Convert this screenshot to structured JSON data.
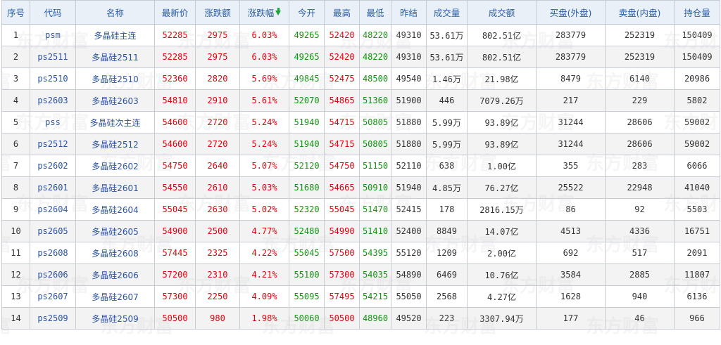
{
  "headers": [
    "序号",
    "代码",
    "名称",
    "最新价",
    "涨跌额",
    "涨跌幅",
    "今开",
    "最高",
    "最低",
    "昨结",
    "成交量",
    "成交额",
    "买盘(外盘)",
    "卖盘(内盘)",
    "持仓量"
  ],
  "sort_indicator": "down-arrow-icon",
  "watermark_text": "东方财富",
  "colors": {
    "up": "#e4000c",
    "down": "#119311",
    "link": "#2a52a0",
    "header_text": "#2c5fa8"
  },
  "rows": [
    [
      "1",
      "psm",
      "多晶硅主连",
      "52285",
      "2975",
      "6.03%",
      "49265",
      "52420",
      "48220",
      "49310",
      "53.61万",
      "802.51亿",
      "283779",
      "252319",
      "150409"
    ],
    [
      "2",
      "ps2511",
      "多晶硅2511",
      "52285",
      "2975",
      "6.03%",
      "49265",
      "52420",
      "48220",
      "49310",
      "53.61万",
      "802.51亿",
      "283779",
      "252319",
      "150409"
    ],
    [
      "3",
      "ps2510",
      "多晶硅2510",
      "52360",
      "2820",
      "5.69%",
      "49845",
      "52475",
      "48500",
      "49540",
      "1.46万",
      "21.98亿",
      "8479",
      "6140",
      "20986"
    ],
    [
      "4",
      "ps2603",
      "多晶硅2603",
      "54810",
      "2910",
      "5.61%",
      "52070",
      "54865",
      "51360",
      "51900",
      "446",
      "7079.26万",
      "217",
      "229",
      "5802"
    ],
    [
      "5",
      "pss",
      "多晶硅次主连",
      "54600",
      "2720",
      "5.24%",
      "51940",
      "54715",
      "50805",
      "51880",
      "5.99万",
      "93.89亿",
      "31244",
      "28606",
      "59002"
    ],
    [
      "6",
      "ps2512",
      "多晶硅2512",
      "54600",
      "2720",
      "5.24%",
      "51940",
      "54715",
      "50805",
      "51880",
      "5.99万",
      "93.89亿",
      "31244",
      "28606",
      "59002"
    ],
    [
      "7",
      "ps2602",
      "多晶硅2602",
      "54750",
      "2640",
      "5.07%",
      "52120",
      "54750",
      "51150",
      "52110",
      "638",
      "1.00亿",
      "355",
      "283",
      "6066"
    ],
    [
      "8",
      "ps2601",
      "多晶硅2601",
      "54550",
      "2610",
      "5.03%",
      "51680",
      "54665",
      "50910",
      "51940",
      "4.85万",
      "76.27亿",
      "25522",
      "22948",
      "41040"
    ],
    [
      "9",
      "ps2604",
      "多晶硅2604",
      "55045",
      "2630",
      "5.02%",
      "52320",
      "55045",
      "51470",
      "52415",
      "178",
      "2816.15万",
      "86",
      "92",
      "5503"
    ],
    [
      "10",
      "ps2605",
      "多晶硅2605",
      "54900",
      "2500",
      "4.77%",
      "52480",
      "54990",
      "51410",
      "52400",
      "8849",
      "14.07亿",
      "4513",
      "4336",
      "16751"
    ],
    [
      "11",
      "ps2608",
      "多晶硅2608",
      "57445",
      "2325",
      "4.22%",
      "55045",
      "57500",
      "54395",
      "55120",
      "1209",
      "2.00亿",
      "692",
      "517",
      "2091"
    ],
    [
      "12",
      "ps2606",
      "多晶硅2606",
      "57200",
      "2310",
      "4.21%",
      "55100",
      "57300",
      "54035",
      "54890",
      "6469",
      "10.76亿",
      "3584",
      "2885",
      "11807"
    ],
    [
      "13",
      "ps2607",
      "多晶硅2607",
      "57300",
      "2250",
      "4.09%",
      "55095",
      "57495",
      "54215",
      "55050",
      "2568",
      "4.27亿",
      "1628",
      "940",
      "6136"
    ],
    [
      "14",
      "ps2509",
      "多晶硅2509",
      "50500",
      "980",
      "1.98%",
      "50060",
      "50500",
      "48960",
      "49520",
      "223",
      "3307.94万",
      "177",
      "46",
      "966"
    ]
  ]
}
